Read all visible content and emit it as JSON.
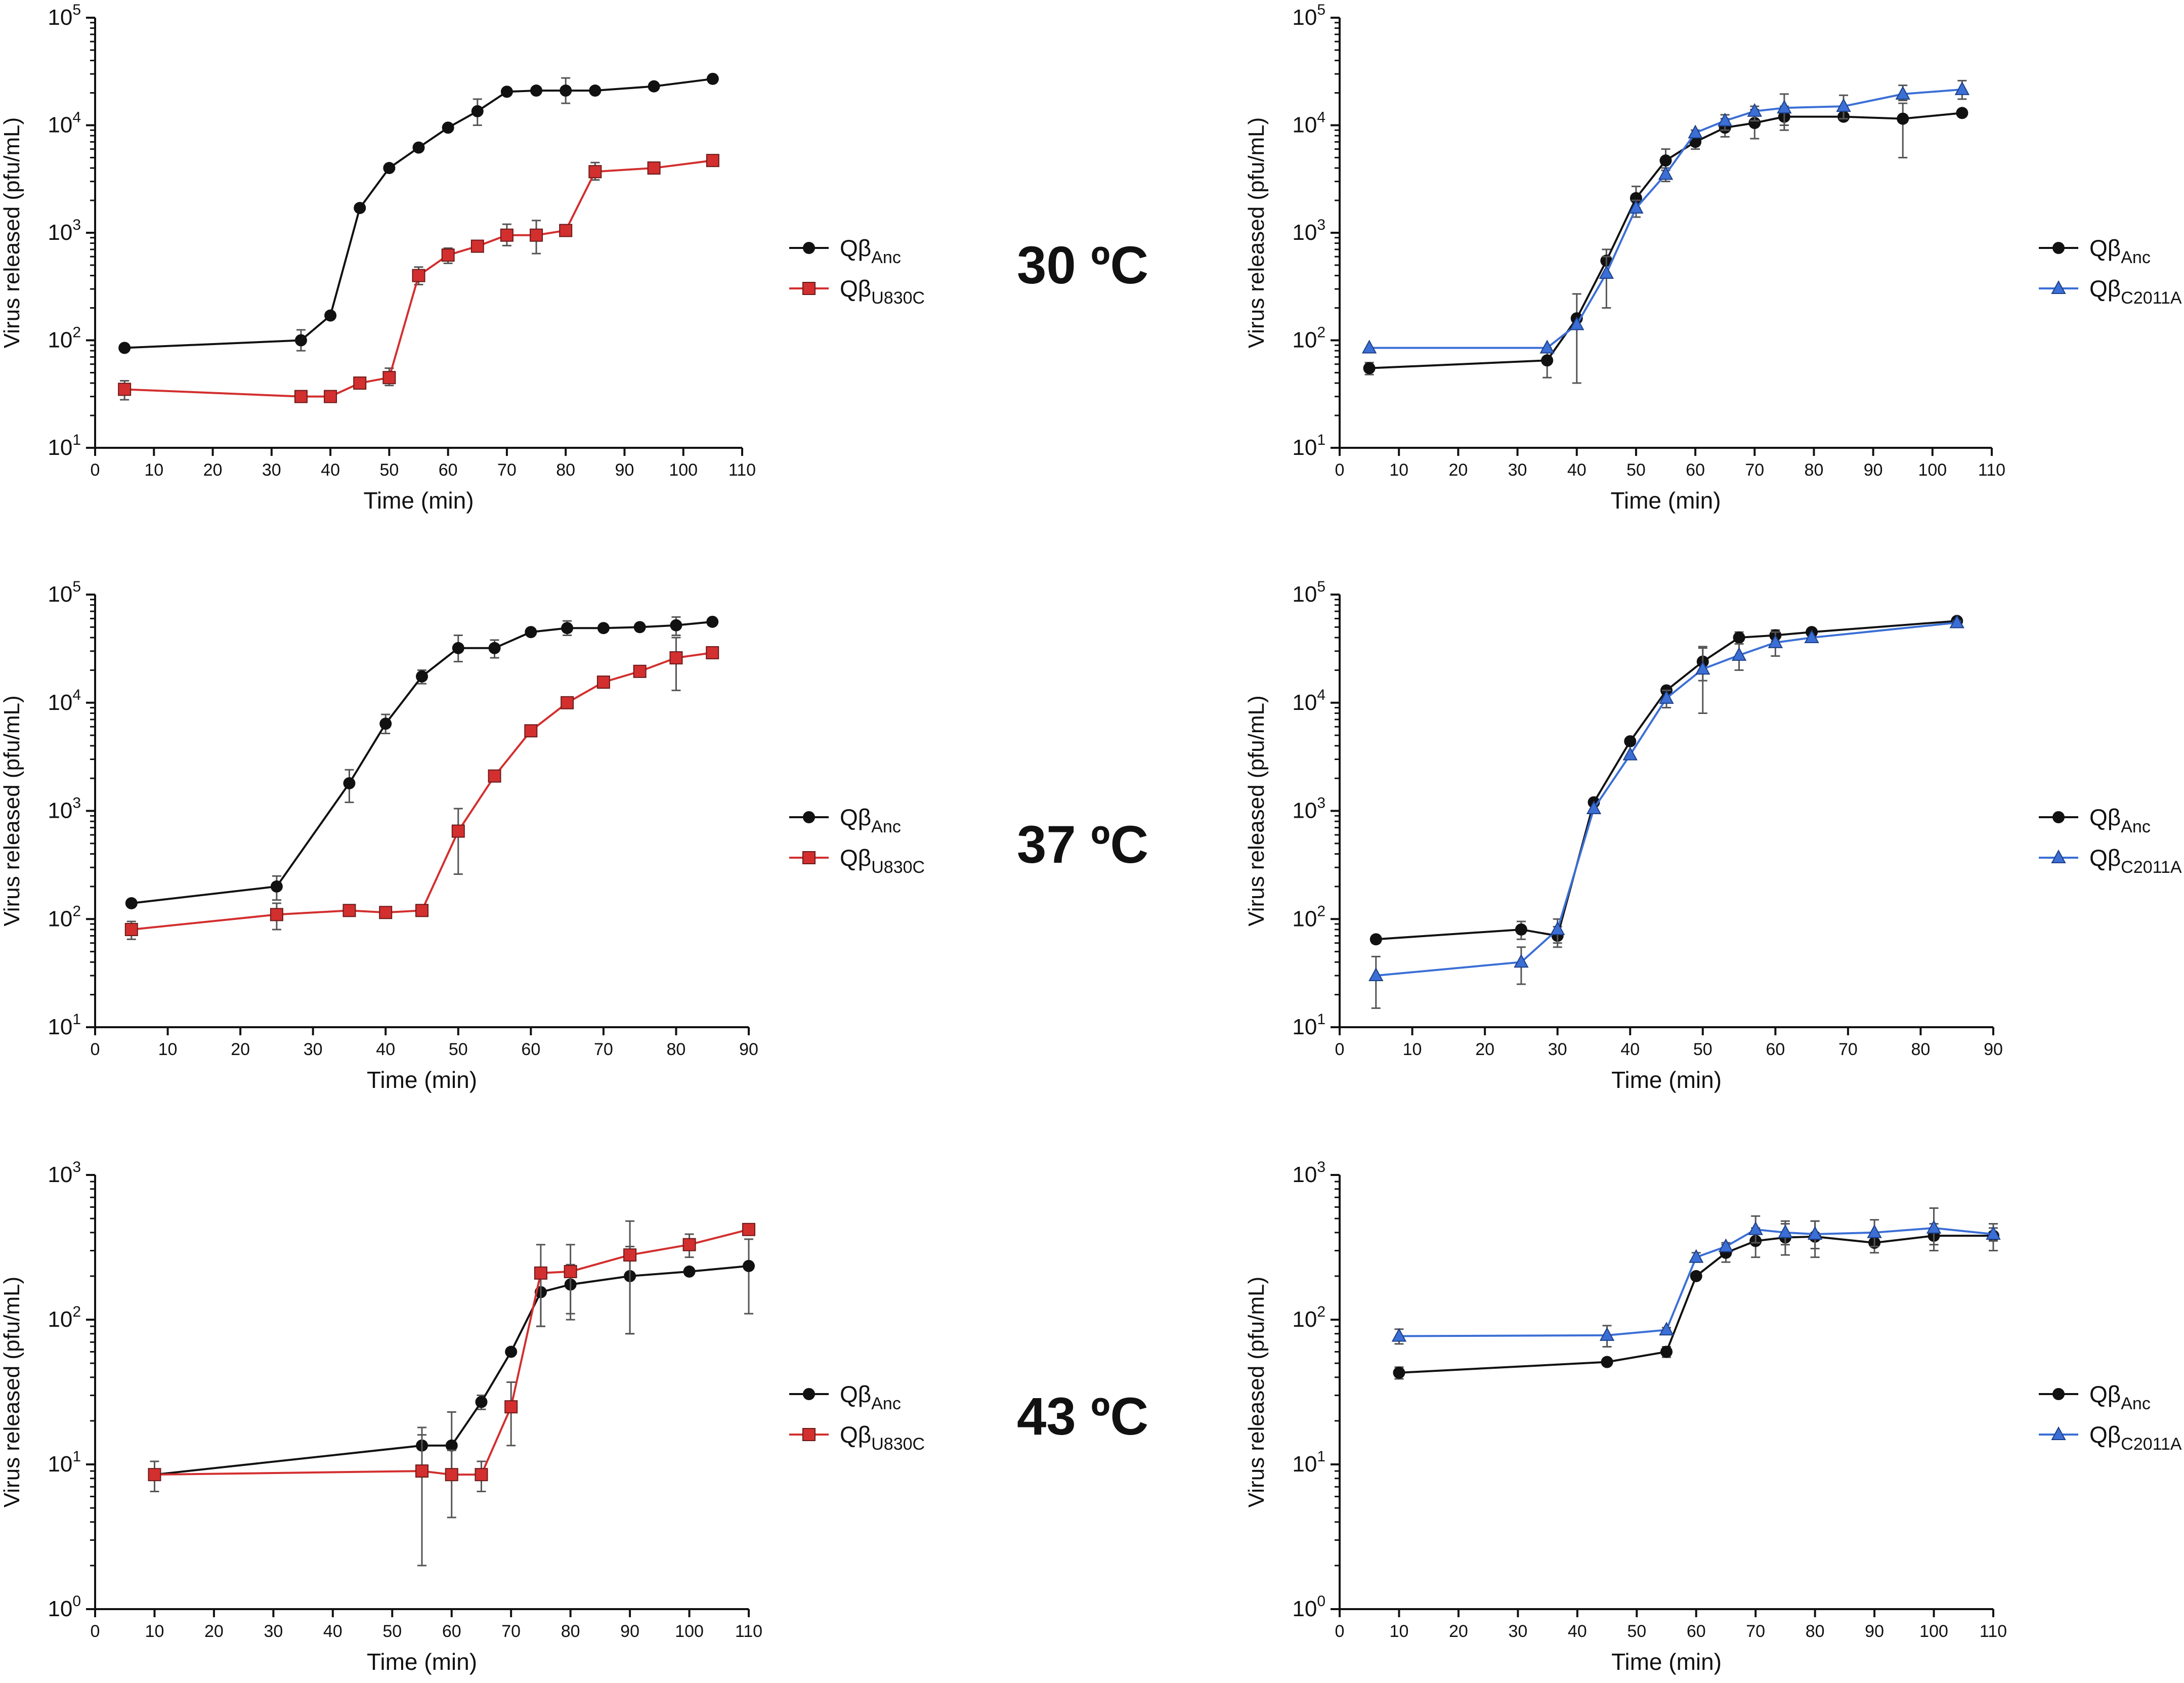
{
  "temperatures": [
    "30 ºC",
    "37 ºC",
    "43 ºC"
  ],
  "colors": {
    "anc": "#111111",
    "u830c": "#d32f2f",
    "c2011a": "#3b6fd6",
    "error": "#555555"
  },
  "chart_data": [
    {
      "type": "line",
      "panel": "30C-U830C",
      "xlabel": "Time (min)",
      "ylabel": "Virus released (pfu/mL)",
      "xlim": [
        0,
        110
      ],
      "xticks": [
        0,
        10,
        20,
        30,
        40,
        50,
        60,
        70,
        80,
        90,
        100,
        110
      ],
      "ylog_exp": [
        1,
        5
      ],
      "series": [
        {
          "name": "QβAnc",
          "label_main": "Qβ",
          "label_sub": "Anc",
          "color": "#111111",
          "marker": "circle",
          "x": [
            5,
            35,
            40,
            45,
            50,
            55,
            60,
            65,
            70,
            75,
            80,
            85,
            95,
            105
          ],
          "y": [
            85,
            100,
            170,
            1700,
            4000,
            6200,
            9500,
            13500,
            20500,
            21000,
            21000,
            21000,
            23000,
            27000
          ],
          "err_low": [
            85,
            80,
            170,
            1700,
            4000,
            6200,
            9500,
            10000,
            20500,
            21000,
            16000,
            21000,
            23000,
            27000
          ],
          "err_high": [
            85,
            125,
            170,
            1700,
            4000,
            6200,
            9500,
            17500,
            20500,
            21000,
            27500,
            21000,
            23000,
            27000
          ]
        },
        {
          "name": "QβU830C",
          "label_main": "Qβ",
          "label_sub": "U830C",
          "color": "#d32f2f",
          "marker": "square",
          "x": [
            5,
            35,
            40,
            45,
            50,
            55,
            60,
            65,
            70,
            75,
            80,
            85,
            95,
            105
          ],
          "y": [
            35,
            30,
            30,
            40,
            45,
            400,
            620,
            750,
            950,
            950,
            1050,
            3700,
            4000,
            4700
          ],
          "err_low": [
            28,
            30,
            30,
            40,
            38,
            330,
            520,
            750,
            760,
            640,
            1050,
            3100,
            4000,
            4200
          ],
          "err_high": [
            42,
            30,
            30,
            40,
            55,
            480,
            720,
            750,
            1200,
            1300,
            1050,
            4500,
            4000,
            5200
          ]
        }
      ]
    },
    {
      "type": "line",
      "panel": "30C-C2011A",
      "xlabel": "Time (min)",
      "ylabel": "Virus released (pfu/mL)",
      "xlim": [
        0,
        110
      ],
      "xticks": [
        0,
        10,
        20,
        30,
        40,
        50,
        60,
        70,
        80,
        90,
        100,
        110
      ],
      "ylog_exp": [
        1,
        5
      ],
      "series": [
        {
          "name": "QβAnc",
          "label_main": "Qβ",
          "label_sub": "Anc",
          "color": "#111111",
          "marker": "circle",
          "x": [
            5,
            35,
            40,
            45,
            50,
            55,
            60,
            65,
            70,
            75,
            85,
            95,
            105
          ],
          "y": [
            55,
            65,
            160,
            550,
            2100,
            4700,
            7000,
            9500,
            10500,
            12000,
            12000,
            11500,
            13000
          ],
          "err_low": [
            48,
            45,
            40,
            400,
            1700,
            3800,
            6000,
            7800,
            7500,
            9000,
            12000,
            5000,
            13000
          ],
          "err_high": [
            62,
            85,
            270,
            700,
            2700,
            6000,
            8000,
            11500,
            14000,
            15000,
            12000,
            16000,
            13000
          ]
        },
        {
          "name": "QβC2011A",
          "label_main": "Qβ",
          "label_sub": "C2011A",
          "color": "#3b6fd6",
          "marker": "triangle",
          "x": [
            5,
            35,
            40,
            45,
            50,
            55,
            60,
            65,
            70,
            75,
            85,
            95,
            105
          ],
          "y": [
            85,
            85,
            140,
            420,
            1700,
            3500,
            8500,
            11000,
            13500,
            14500,
            15000,
            19500,
            21500
          ],
          "err_low": [
            85,
            85,
            140,
            200,
            1400,
            3000,
            8000,
            9000,
            11000,
            10000,
            11500,
            17000,
            17500
          ],
          "err_high": [
            85,
            85,
            140,
            600,
            2000,
            4000,
            9000,
            12500,
            15000,
            19500,
            19000,
            23500,
            26000
          ]
        }
      ]
    },
    {
      "type": "line",
      "panel": "37C-U830C",
      "xlabel": "Time (min)",
      "ylabel": "Virus released (pfu/mL)",
      "xlim": [
        0,
        90
      ],
      "xticks": [
        0,
        10,
        20,
        30,
        40,
        50,
        60,
        70,
        80,
        90
      ],
      "ylog_exp": [
        1,
        5
      ],
      "series": [
        {
          "name": "QβAnc",
          "label_main": "Qβ",
          "label_sub": "Anc",
          "color": "#111111",
          "marker": "circle",
          "x": [
            5,
            25,
            35,
            40,
            45,
            50,
            55,
            60,
            65,
            70,
            75,
            80,
            85
          ],
          "y": [
            140,
            200,
            1800,
            6400,
            17500,
            32000,
            32000,
            45000,
            49000,
            49000,
            50000,
            52000,
            56000
          ],
          "err_low": [
            130,
            150,
            1200,
            5200,
            15000,
            24000,
            26000,
            45000,
            42000,
            49000,
            50000,
            42000,
            56000
          ],
          "err_high": [
            150,
            250,
            2400,
            7800,
            20000,
            42000,
            38000,
            45000,
            57000,
            49000,
            50000,
            62000,
            56000
          ]
        },
        {
          "name": "QβU830C",
          "label_main": "Qβ",
          "label_sub": "U830C",
          "color": "#d32f2f",
          "marker": "square",
          "x": [
            5,
            25,
            35,
            40,
            45,
            50,
            55,
            60,
            65,
            70,
            75,
            80,
            85
          ],
          "y": [
            80,
            110,
            120,
            115,
            120,
            650,
            2100,
            5500,
            10000,
            15500,
            19500,
            26000,
            29000
          ],
          "err_low": [
            65,
            80,
            110,
            115,
            110,
            260,
            2100,
            5500,
            10000,
            14000,
            17500,
            13000,
            27000
          ],
          "err_high": [
            95,
            140,
            130,
            115,
            130,
            1050,
            2100,
            5500,
            10000,
            17000,
            21500,
            40000,
            31000
          ]
        }
      ]
    },
    {
      "type": "line",
      "panel": "37C-C2011A",
      "xlabel": "Time (min)",
      "ylabel": "Virus released (pfu/mL)",
      "xlim": [
        0,
        90
      ],
      "xticks": [
        0,
        10,
        20,
        30,
        40,
        50,
        60,
        70,
        80,
        90
      ],
      "ylog_exp": [
        1,
        5
      ],
      "series": [
        {
          "name": "QβAnc",
          "label_main": "Qβ",
          "label_sub": "Anc",
          "color": "#111111",
          "marker": "circle",
          "x": [
            5,
            25,
            30,
            35,
            40,
            45,
            50,
            55,
            60,
            65,
            85
          ],
          "y": [
            65,
            80,
            70,
            1200,
            4400,
            13000,
            24000,
            40000,
            42000,
            45000,
            57000
          ],
          "err_low": [
            60,
            65,
            55,
            1200,
            4400,
            12000,
            16000,
            35000,
            37000,
            45000,
            53000
          ],
          "err_high": [
            70,
            95,
            85,
            1200,
            4400,
            14000,
            32000,
            45000,
            47000,
            45000,
            61000
          ]
        },
        {
          "name": "QβC2011A",
          "label_main": "Qβ",
          "label_sub": "C2011A",
          "color": "#3b6fd6",
          "marker": "triangle",
          "x": [
            5,
            25,
            30,
            35,
            40,
            45,
            50,
            55,
            60,
            65,
            85
          ],
          "y": [
            30,
            40,
            80,
            1050,
            3300,
            11000,
            20500,
            27500,
            36000,
            40000,
            55000
          ],
          "err_low": [
            15,
            25,
            60,
            1050,
            3300,
            9000,
            8000,
            20000,
            27000,
            40000,
            53000
          ],
          "err_high": [
            45,
            55,
            100,
            1050,
            3300,
            13000,
            33000,
            35000,
            45000,
            40000,
            57000
          ]
        }
      ]
    },
    {
      "type": "line",
      "panel": "43C-U830C",
      "xlabel": "Time (min)",
      "ylabel": "Virus released (pfu/mL)",
      "xlim": [
        0,
        110
      ],
      "xticks": [
        0,
        10,
        20,
        30,
        40,
        50,
        60,
        70,
        80,
        90,
        100,
        110
      ],
      "ylog_exp": [
        0,
        3
      ],
      "series": [
        {
          "name": "QβAnc",
          "label_main": "Qβ",
          "label_sub": "Anc",
          "color": "#111111",
          "marker": "circle",
          "x": [
            10,
            55,
            60,
            65,
            70,
            75,
            80,
            90,
            100,
            110
          ],
          "y": [
            8.5,
            13.5,
            13.5,
            27,
            60,
            155,
            175,
            200,
            215,
            235
          ],
          "err_low": [
            6.5,
            9,
            8,
            24,
            60,
            90,
            110,
            80,
            215,
            110
          ],
          "err_high": [
            10.5,
            18,
            23,
            30,
            60,
            220,
            240,
            320,
            215,
            360
          ]
        },
        {
          "name": "QβU830C",
          "label_main": "Qβ",
          "label_sub": "U830C",
          "color": "#d32f2f",
          "marker": "square",
          "x": [
            10,
            55,
            60,
            65,
            70,
            75,
            80,
            90,
            100,
            110
          ],
          "y": [
            8.5,
            9,
            8.5,
            8.5,
            25,
            210,
            215,
            280,
            330,
            420
          ],
          "err_low": [
            8.5,
            2,
            4.3,
            6.5,
            13.5,
            90,
            100,
            80,
            270,
            390
          ],
          "err_high": [
            8.5,
            16,
            12.5,
            10.5,
            37,
            330,
            330,
            480,
            390,
            450
          ]
        }
      ]
    },
    {
      "type": "line",
      "panel": "43C-C2011A",
      "xlabel": "Time (min)",
      "ylabel": "Virus released (pfu/mL)",
      "xlim": [
        0,
        110
      ],
      "xticks": [
        0,
        10,
        20,
        30,
        40,
        50,
        60,
        70,
        80,
        90,
        100,
        110
      ],
      "ylog_exp": [
        0,
        3
      ],
      "series": [
        {
          "name": "QβAnc",
          "label_main": "Qβ",
          "label_sub": "Anc",
          "color": "#111111",
          "marker": "circle",
          "x": [
            10,
            45,
            55,
            60,
            65,
            70,
            75,
            80,
            90,
            100,
            110
          ],
          "y": [
            43,
            51,
            60,
            200,
            290,
            350,
            370,
            375,
            340,
            380,
            380
          ],
          "err_low": [
            39,
            51,
            55,
            200,
            250,
            270,
            280,
            270,
            290,
            300,
            300
          ],
          "err_high": [
            47,
            51,
            65,
            200,
            330,
            430,
            460,
            480,
            390,
            460,
            460
          ]
        },
        {
          "name": "QβC2011A",
          "label_main": "Qβ",
          "label_sub": "C2011A",
          "color": "#3b6fd6",
          "marker": "triangle",
          "x": [
            10,
            45,
            55,
            60,
            65,
            70,
            75,
            80,
            90,
            100,
            110
          ],
          "y": [
            77,
            78,
            85,
            270,
            320,
            420,
            400,
            390,
            400,
            430,
            390
          ],
          "err_low": [
            68,
            65,
            82,
            250,
            300,
            340,
            330,
            310,
            320,
            330,
            350
          ],
          "err_high": [
            86,
            91,
            88,
            290,
            340,
            520,
            480,
            480,
            490,
            590,
            430
          ]
        }
      ]
    }
  ]
}
